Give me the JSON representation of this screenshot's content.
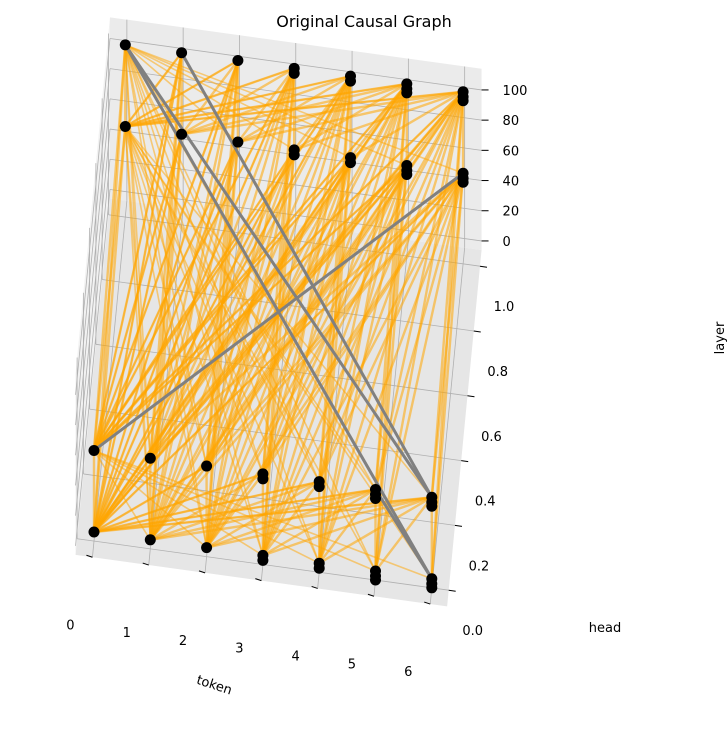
{
  "chart_data": {
    "type": "scatter",
    "projection": "3d",
    "title": "Original Causal Graph",
    "xlabel": "token",
    "ylabel": "head",
    "zlabel": "layer",
    "x_ticks": [
      "0",
      "1",
      "2",
      "3",
      "4",
      "5",
      "6"
    ],
    "y_ticks": [
      "0.0",
      "0.2",
      "0.4",
      "0.6",
      "0.8",
      "1.0"
    ],
    "z_ticks": [
      "0",
      "20",
      "40",
      "60",
      "80",
      "100"
    ],
    "xlim": [
      -0.3,
      6.3
    ],
    "ylim": [
      -0.05,
      1.05
    ],
    "zlim": [
      -6,
      114
    ],
    "grid": true,
    "node_color": "#000000",
    "edge_color": "#FFA500",
    "highlight_edge_color": "#808080",
    "nodes": [
      {
        "x": 0,
        "y": 0,
        "z": 0
      },
      {
        "x": 1,
        "y": 0,
        "z": 0
      },
      {
        "x": 2,
        "y": 0,
        "z": 0
      },
      {
        "x": 3,
        "y": 0,
        "z": 0
      },
      {
        "x": 4,
        "y": 0,
        "z": 0
      },
      {
        "x": 5,
        "y": 0,
        "z": 0
      },
      {
        "x": 6,
        "y": 0,
        "z": 0
      },
      {
        "x": 0,
        "y": 0,
        "z": 54
      },
      {
        "x": 1,
        "y": 0,
        "z": 54
      },
      {
        "x": 2,
        "y": 0,
        "z": 54
      },
      {
        "x": 3,
        "y": 0,
        "z": 54
      },
      {
        "x": 4,
        "y": 0,
        "z": 54
      },
      {
        "x": 5,
        "y": 0,
        "z": 54
      },
      {
        "x": 6,
        "y": 0,
        "z": 54
      },
      {
        "x": 0,
        "y": 1,
        "z": 54
      },
      {
        "x": 1,
        "y": 1,
        "z": 54
      },
      {
        "x": 2,
        "y": 1,
        "z": 54
      },
      {
        "x": 3,
        "y": 1,
        "z": 54
      },
      {
        "x": 4,
        "y": 1,
        "z": 54
      },
      {
        "x": 5,
        "y": 1,
        "z": 54
      },
      {
        "x": 6,
        "y": 1,
        "z": 54
      },
      {
        "x": 0,
        "y": 1,
        "z": 108
      },
      {
        "x": 1,
        "y": 1,
        "z": 108
      },
      {
        "x": 2,
        "y": 1,
        "z": 108
      },
      {
        "x": 3,
        "y": 1,
        "z": 108
      },
      {
        "x": 4,
        "y": 1,
        "z": 108
      },
      {
        "x": 5,
        "y": 1,
        "z": 108
      },
      {
        "x": 6,
        "y": 1,
        "z": 108
      }
    ],
    "highlight_edges": [
      {
        "from": [
          0,
          1,
          108
        ],
        "to": [
          6,
          0,
          54
        ]
      },
      {
        "from": [
          1,
          1,
          108
        ],
        "to": [
          6,
          0,
          54
        ]
      },
      {
        "from": [
          0,
          1,
          108
        ],
        "to": [
          6,
          0,
          0
        ]
      },
      {
        "from": [
          0,
          0,
          54
        ],
        "to": [
          6,
          1,
          54
        ]
      },
      {
        "from": [
          6,
          0,
          0
        ],
        "to": [
          5,
          0,
          54
        ]
      }
    ]
  }
}
